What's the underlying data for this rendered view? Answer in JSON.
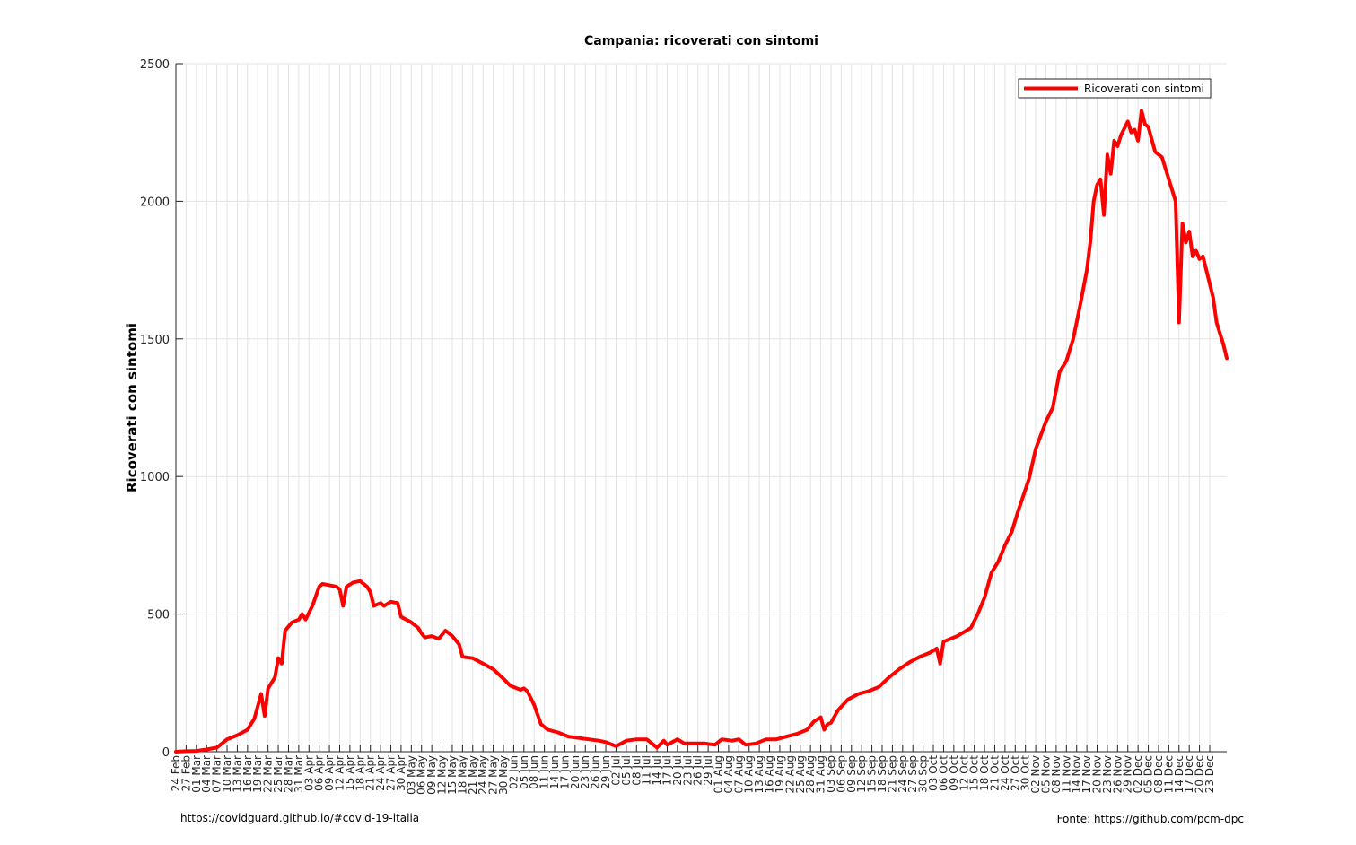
{
  "chart_data": {
    "type": "line",
    "title": "Campania: ricoverati con sintomi",
    "ylabel": "Ricoverati con sintomi",
    "xlabel": "",
    "ylim": [
      0,
      2500
    ],
    "y_ticks": [
      0,
      500,
      1000,
      1500,
      2000,
      2500
    ],
    "x_range": [
      "2020-02-24",
      "2020-12-28"
    ],
    "grid": true,
    "legend": "top-right",
    "x_tick_labels": [
      "24 Feb",
      "27 Feb",
      "01 Mar",
      "04 Mar",
      "07 Mar",
      "10 Mar",
      "13 Mar",
      "16 Mar",
      "19 Mar",
      "22 Mar",
      "25 Mar",
      "28 Mar",
      "31 Mar",
      "03 Apr",
      "06 Apr",
      "09 Apr",
      "12 Apr",
      "15 Apr",
      "18 Apr",
      "21 Apr",
      "24 Apr",
      "27 Apr",
      "30 Apr",
      "03 May",
      "06 May",
      "09 May",
      "12 May",
      "15 May",
      "18 May",
      "21 May",
      "24 May",
      "27 May",
      "30 May",
      "02 Jun",
      "05 Jun",
      "08 Jun",
      "11 Jun",
      "14 Jun",
      "17 Jun",
      "20 Jun",
      "23 Jun",
      "26 Jun",
      "29 Jun",
      "02 Jul",
      "05 Jul",
      "08 Jul",
      "11 Jul",
      "14 Jul",
      "17 Jul",
      "20 Jul",
      "23 Jul",
      "26 Jul",
      "29 Jul",
      "01 Aug",
      "04 Aug",
      "07 Aug",
      "10 Aug",
      "13 Aug",
      "16 Aug",
      "19 Aug",
      "22 Aug",
      "25 Aug",
      "28 Aug",
      "31 Aug",
      "03 Sep",
      "06 Sep",
      "09 Sep",
      "12 Sep",
      "15 Sep",
      "18 Sep",
      "21 Sep",
      "24 Sep",
      "27 Sep",
      "30 Sep",
      "03 Oct",
      "06 Oct",
      "09 Oct",
      "12 Oct",
      "15 Oct",
      "18 Oct",
      "21 Oct",
      "24 Oct",
      "27 Oct",
      "30 Oct",
      "02 Nov",
      "05 Nov",
      "08 Nov",
      "11 Nov",
      "14 Nov",
      "17 Nov",
      "20 Nov",
      "23 Nov",
      "26 Nov",
      "29 Nov",
      "02 Dec",
      "05 Dec",
      "08 Dec",
      "11 Dec",
      "14 Dec",
      "17 Dec",
      "20 Dec",
      "23 Dec"
    ],
    "series": [
      {
        "name": "Ricoverati con sintomi",
        "color": "#ff0000",
        "points": [
          [
            "2020-02-24",
            0
          ],
          [
            "2020-02-27",
            2
          ],
          [
            "2020-03-01",
            3
          ],
          [
            "2020-03-04",
            8
          ],
          [
            "2020-03-07",
            15
          ],
          [
            "2020-03-10",
            45
          ],
          [
            "2020-03-13",
            60
          ],
          [
            "2020-03-16",
            80
          ],
          [
            "2020-03-18",
            120
          ],
          [
            "2020-03-20",
            210
          ],
          [
            "2020-03-21",
            130
          ],
          [
            "2020-03-22",
            230
          ],
          [
            "2020-03-24",
            270
          ],
          [
            "2020-03-25",
            340
          ],
          [
            "2020-03-26",
            320
          ],
          [
            "2020-03-27",
            440
          ],
          [
            "2020-03-29",
            470
          ],
          [
            "2020-03-31",
            480
          ],
          [
            "2020-04-01",
            500
          ],
          [
            "2020-04-02",
            480
          ],
          [
            "2020-04-04",
            530
          ],
          [
            "2020-04-06",
            600
          ],
          [
            "2020-04-07",
            610
          ],
          [
            "2020-04-09",
            605
          ],
          [
            "2020-04-11",
            600
          ],
          [
            "2020-04-12",
            590
          ],
          [
            "2020-04-13",
            530
          ],
          [
            "2020-04-14",
            600
          ],
          [
            "2020-04-16",
            615
          ],
          [
            "2020-04-18",
            620
          ],
          [
            "2020-04-20",
            600
          ],
          [
            "2020-04-21",
            580
          ],
          [
            "2020-04-22",
            530
          ],
          [
            "2020-04-24",
            540
          ],
          [
            "2020-04-25",
            530
          ],
          [
            "2020-04-27",
            545
          ],
          [
            "2020-04-29",
            540
          ],
          [
            "2020-04-30",
            490
          ],
          [
            "2020-05-03",
            470
          ],
          [
            "2020-05-05",
            450
          ],
          [
            "2020-05-06",
            430
          ],
          [
            "2020-05-07",
            415
          ],
          [
            "2020-05-09",
            420
          ],
          [
            "2020-05-11",
            410
          ],
          [
            "2020-05-13",
            440
          ],
          [
            "2020-05-15",
            420
          ],
          [
            "2020-05-17",
            390
          ],
          [
            "2020-05-18",
            345
          ],
          [
            "2020-05-21",
            340
          ],
          [
            "2020-05-24",
            320
          ],
          [
            "2020-05-27",
            300
          ],
          [
            "2020-05-30",
            265
          ],
          [
            "2020-06-01",
            240
          ],
          [
            "2020-06-04",
            225
          ],
          [
            "2020-06-05",
            230
          ],
          [
            "2020-06-06",
            220
          ],
          [
            "2020-06-08",
            170
          ],
          [
            "2020-06-10",
            100
          ],
          [
            "2020-06-12",
            80
          ],
          [
            "2020-06-15",
            70
          ],
          [
            "2020-06-18",
            55
          ],
          [
            "2020-06-21",
            50
          ],
          [
            "2020-06-24",
            45
          ],
          [
            "2020-06-27",
            40
          ],
          [
            "2020-06-29",
            35
          ],
          [
            "2020-07-02",
            20
          ],
          [
            "2020-07-05",
            40
          ],
          [
            "2020-07-08",
            45
          ],
          [
            "2020-07-11",
            45
          ],
          [
            "2020-07-14",
            15
          ],
          [
            "2020-07-16",
            40
          ],
          [
            "2020-07-17",
            25
          ],
          [
            "2020-07-20",
            45
          ],
          [
            "2020-07-22",
            30
          ],
          [
            "2020-07-25",
            30
          ],
          [
            "2020-07-28",
            30
          ],
          [
            "2020-07-31",
            25
          ],
          [
            "2020-08-02",
            45
          ],
          [
            "2020-08-05",
            40
          ],
          [
            "2020-08-07",
            45
          ],
          [
            "2020-08-09",
            25
          ],
          [
            "2020-08-12",
            30
          ],
          [
            "2020-08-15",
            45
          ],
          [
            "2020-08-18",
            45
          ],
          [
            "2020-08-21",
            55
          ],
          [
            "2020-08-24",
            65
          ],
          [
            "2020-08-27",
            80
          ],
          [
            "2020-08-29",
            110
          ],
          [
            "2020-08-31",
            125
          ],
          [
            "2020-09-01",
            80
          ],
          [
            "2020-09-02",
            100
          ],
          [
            "2020-09-03",
            105
          ],
          [
            "2020-09-05",
            150
          ],
          [
            "2020-09-08",
            190
          ],
          [
            "2020-09-11",
            210
          ],
          [
            "2020-09-14",
            220
          ],
          [
            "2020-09-17",
            235
          ],
          [
            "2020-09-20",
            270
          ],
          [
            "2020-09-23",
            300
          ],
          [
            "2020-09-26",
            325
          ],
          [
            "2020-09-29",
            345
          ],
          [
            "2020-10-02",
            360
          ],
          [
            "2020-10-04",
            375
          ],
          [
            "2020-10-05",
            320
          ],
          [
            "2020-10-06",
            400
          ],
          [
            "2020-10-08",
            410
          ],
          [
            "2020-10-10",
            420
          ],
          [
            "2020-10-12",
            435
          ],
          [
            "2020-10-14",
            450
          ],
          [
            "2020-10-16",
            500
          ],
          [
            "2020-10-18",
            560
          ],
          [
            "2020-10-20",
            650
          ],
          [
            "2020-10-22",
            690
          ],
          [
            "2020-10-24",
            750
          ],
          [
            "2020-10-26",
            800
          ],
          [
            "2020-10-28",
            880
          ],
          [
            "2020-10-31",
            990
          ],
          [
            "2020-11-02",
            1100
          ],
          [
            "2020-11-05",
            1200
          ],
          [
            "2020-11-07",
            1250
          ],
          [
            "2020-11-09",
            1380
          ],
          [
            "2020-11-11",
            1420
          ],
          [
            "2020-11-13",
            1500
          ],
          [
            "2020-11-15",
            1620
          ],
          [
            "2020-11-17",
            1750
          ],
          [
            "2020-11-18",
            1850
          ],
          [
            "2020-11-19",
            2000
          ],
          [
            "2020-11-20",
            2060
          ],
          [
            "2020-11-21",
            2080
          ],
          [
            "2020-11-22",
            1950
          ],
          [
            "2020-11-23",
            2170
          ],
          [
            "2020-11-24",
            2100
          ],
          [
            "2020-11-25",
            2220
          ],
          [
            "2020-11-26",
            2200
          ],
          [
            "2020-11-27",
            2240
          ],
          [
            "2020-11-29",
            2290
          ],
          [
            "2020-11-30",
            2250
          ],
          [
            "2020-12-01",
            2260
          ],
          [
            "2020-12-02",
            2220
          ],
          [
            "2020-12-03",
            2330
          ],
          [
            "2020-12-04",
            2280
          ],
          [
            "2020-12-05",
            2270
          ],
          [
            "2020-12-07",
            2180
          ],
          [
            "2020-12-09",
            2160
          ],
          [
            "2020-12-11",
            2080
          ],
          [
            "2020-12-13",
            2000
          ],
          [
            "2020-12-14",
            1560
          ],
          [
            "2020-12-15",
            1920
          ],
          [
            "2020-12-16",
            1850
          ],
          [
            "2020-12-17",
            1890
          ],
          [
            "2020-12-18",
            1800
          ],
          [
            "2020-12-19",
            1820
          ],
          [
            "2020-12-20",
            1790
          ],
          [
            "2020-12-21",
            1800
          ],
          [
            "2020-12-22",
            1750
          ],
          [
            "2020-12-23",
            1700
          ],
          [
            "2020-12-24",
            1650
          ],
          [
            "2020-12-25",
            1560
          ],
          [
            "2020-12-26",
            1520
          ],
          [
            "2020-12-27",
            1480
          ],
          [
            "2020-12-28",
            1430
          ]
        ]
      }
    ]
  },
  "footer": {
    "left": "https://covidguard.github.io/#covid-19-italia",
    "right": "Fonte: https://github.com/pcm-dpc"
  }
}
